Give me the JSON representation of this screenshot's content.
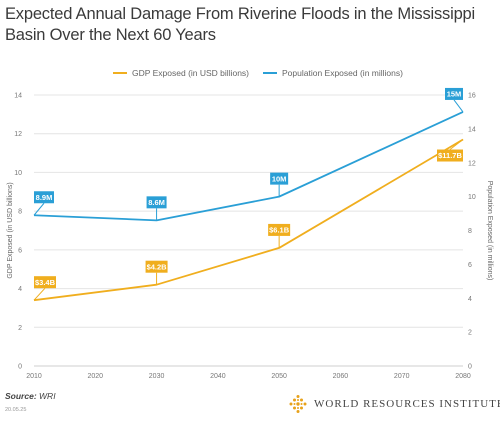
{
  "title": "Expected Annual Damage From Riverine Floods in the Mississippi Basin Over the Next 60 Years",
  "source_label": "Source:",
  "source_value": "WRI",
  "datestamp": "20.05.25",
  "brand": {
    "name": "WORLD RESOURCES INSTITUTE",
    "logo_icon": "wri-logo-icon"
  },
  "colors": {
    "gdp": "#f0ae1e",
    "population": "#2a9fd6",
    "grid": "#e4e4e4",
    "axis": "#cfcfcf"
  },
  "chart_data": {
    "type": "line",
    "title": "Expected Annual Damage From Riverine Floods in the Mississippi Basin Over the Next 60 Years",
    "x": [
      2010,
      2030,
      2050,
      2080
    ],
    "x_ticks": [
      2010,
      2020,
      2030,
      2040,
      2050,
      2060,
      2070,
      2080
    ],
    "xlim": [
      2010,
      2080
    ],
    "ylabel_left": "GDP Exposed (in USD billions)",
    "ylabel_right": "Population Exposed (in millions)",
    "ylim_left": [
      0,
      14
    ],
    "ylim_right": [
      0,
      16
    ],
    "yticks_left": [
      0,
      2,
      4,
      6,
      8,
      10,
      12,
      14
    ],
    "yticks_right": [
      0,
      2,
      4,
      6,
      8,
      10,
      12,
      14,
      16
    ],
    "grid": true,
    "legend_position": "top-center",
    "series": [
      {
        "name": "GDP Exposed (in USD billions)",
        "axis": "left",
        "color": "#f0ae1e",
        "values": [
          3.4,
          4.2,
          6.1,
          11.7
        ],
        "labels": [
          "$3.4B",
          "$4.2B",
          "$6.1B",
          "$11.7B"
        ]
      },
      {
        "name": "Population Exposed (in millions)",
        "axis": "right",
        "color": "#2a9fd6",
        "values": [
          8.9,
          8.6,
          10,
          15
        ],
        "labels": [
          "8.9M",
          "8.6M",
          "10M",
          "15M"
        ]
      }
    ]
  }
}
